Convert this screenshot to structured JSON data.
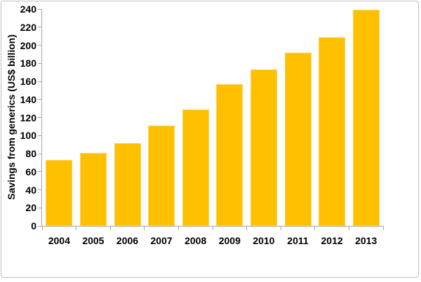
{
  "chart_data": {
    "type": "bar",
    "title": "",
    "xlabel": "",
    "ylabel": "Savings from generics (US$ billion)",
    "categories": [
      "2004",
      "2005",
      "2006",
      "2007",
      "2008",
      "2009",
      "2010",
      "2011",
      "2012",
      "2013"
    ],
    "values": [
      73,
      81,
      92,
      111,
      129,
      157,
      173,
      192,
      209,
      239
    ],
    "ylim": [
      0,
      240
    ],
    "yticks": [
      0,
      20,
      40,
      60,
      80,
      100,
      120,
      140,
      160,
      180,
      200,
      220,
      240
    ],
    "grid": false,
    "legend": false,
    "colors": {
      "bar_fill": "#FFC000",
      "bar_edge": "#FFD35C",
      "axis": "#A6A6A6",
      "text": "#000000",
      "background": "#FFFFFF",
      "frame_border": "#BFBFBF"
    }
  }
}
